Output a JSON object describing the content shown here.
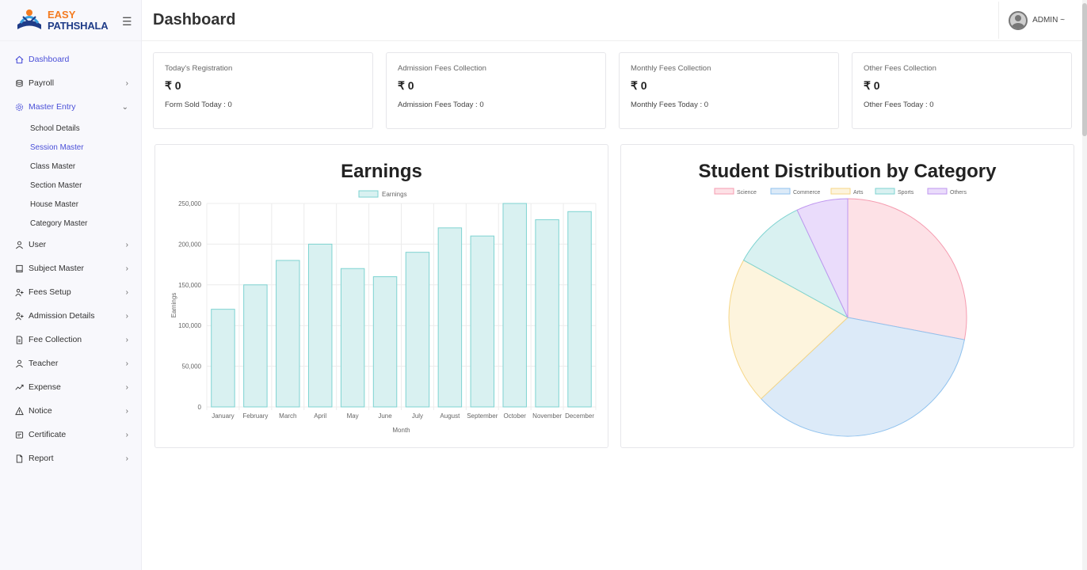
{
  "brand": {
    "line1": "EASY",
    "line2": "PATHSHALA"
  },
  "header": {
    "title": "Dashboard",
    "user": "ADMIN ~"
  },
  "sidebar": {
    "items": [
      {
        "label": "Dashboard",
        "icon": "home-icon",
        "chevron": ""
      },
      {
        "label": "Payroll",
        "icon": "database-icon",
        "chevron": "›"
      },
      {
        "label": "Master Entry",
        "icon": "gear-icon",
        "chevron": "⌄"
      },
      {
        "label": "User",
        "icon": "user-icon",
        "chevron": "›"
      },
      {
        "label": "Subject Master",
        "icon": "book-icon",
        "chevron": "›"
      },
      {
        "label": "Fees Setup",
        "icon": "user-plus-icon",
        "chevron": "›"
      },
      {
        "label": "Admission Details",
        "icon": "user-plus-icon",
        "chevron": "›"
      },
      {
        "label": "Fee Collection",
        "icon": "file-icon",
        "chevron": "›"
      },
      {
        "label": "Teacher",
        "icon": "user-icon",
        "chevron": "›"
      },
      {
        "label": "Expense",
        "icon": "trend-icon",
        "chevron": "›"
      },
      {
        "label": "Notice",
        "icon": "warning-icon",
        "chevron": "›"
      },
      {
        "label": "Certificate",
        "icon": "certificate-icon",
        "chevron": "›"
      },
      {
        "label": "Report",
        "icon": "report-icon",
        "chevron": "›"
      }
    ],
    "master_entry_sub": [
      "School Details",
      "Session Master",
      "Class Master",
      "Section Master",
      "House Master",
      "Category Master"
    ]
  },
  "stats": [
    {
      "title": "Today's Registration",
      "amount": "₹ 0",
      "sub": "Form Sold Today : 0"
    },
    {
      "title": "Admission Fees Collection",
      "amount": "₹ 0",
      "sub": "Admission Fees Today : 0"
    },
    {
      "title": "Monthly Fees Collection",
      "amount": "₹ 0",
      "sub": "Monthly Fees Today : 0"
    },
    {
      "title": "Other Fees Collection",
      "amount": "₹ 0",
      "sub": "Other Fees Today : 0"
    }
  ],
  "colors": {
    "accent": "#4a4fd8",
    "brand_orange": "#f47b20",
    "brand_blue": "#1f3c88"
  },
  "chart_data": [
    {
      "type": "bar",
      "title": "Earnings",
      "xlabel": "Month",
      "ylabel": "Earnings",
      "ylim": [
        0,
        250000
      ],
      "yticks": [
        "0",
        "50,000",
        "100,000",
        "150,000",
        "200,000",
        "250,000"
      ],
      "categories": [
        "January",
        "February",
        "March",
        "April",
        "May",
        "June",
        "July",
        "August",
        "September",
        "October",
        "November",
        "December"
      ],
      "series": [
        {
          "name": "Earnings",
          "values": [
            120000,
            150000,
            180000,
            200000,
            170000,
            160000,
            190000,
            220000,
            210000,
            250000,
            230000,
            240000
          ],
          "fill": "#d9f1f1",
          "stroke": "#7ed3d1"
        }
      ],
      "legend": "top",
      "grid": true
    },
    {
      "type": "pie",
      "title": "Student Distribution by Category",
      "legend": "top",
      "slices": [
        {
          "name": "Science",
          "value": 28,
          "fill": "#fde1e6",
          "stroke": "#f59cb0"
        },
        {
          "name": "Commerce",
          "value": 35,
          "fill": "#dceaf8",
          "stroke": "#90c2ee"
        },
        {
          "name": "Arts",
          "value": 20,
          "fill": "#fdf4dd",
          "stroke": "#f6d686"
        },
        {
          "name": "Sports",
          "value": 10,
          "fill": "#d9f1f1",
          "stroke": "#7ed3d1"
        },
        {
          "name": "Others",
          "value": 7,
          "fill": "#eadcfb",
          "stroke": "#bf96ef"
        }
      ]
    }
  ]
}
